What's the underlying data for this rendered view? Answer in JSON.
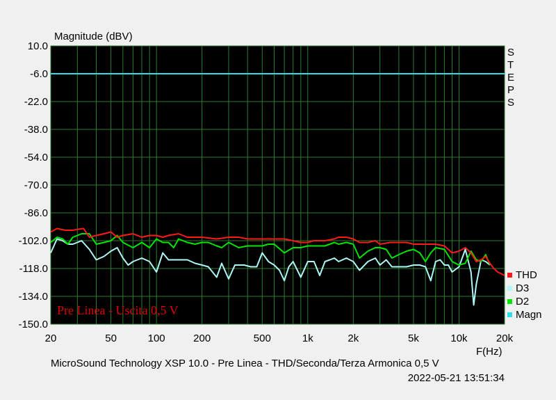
{
  "chart_data": {
    "type": "line",
    "ylabel": "Magnitude (dBV)",
    "xlabel": "F(Hz)",
    "x_scale": "log",
    "xlim": [
      20,
      20000
    ],
    "ylim": [
      -150,
      10
    ],
    "grid": true,
    "yticks": [
      10,
      -6,
      -22,
      -38,
      -54,
      -70,
      -86,
      -102,
      -118,
      -134,
      -150
    ],
    "ytick_labels": [
      "10.0",
      "-6.0",
      "-22.0",
      "-38.0",
      "-54.0",
      "-70.0",
      "-86.0",
      "-102.0",
      "-118.0",
      "-134.0",
      "-150.0"
    ],
    "xticks": [
      20,
      50,
      100,
      200,
      500,
      1000,
      2000,
      5000,
      10000,
      20000
    ],
    "xtick_labels": [
      "20",
      "50",
      "100",
      "200",
      "500",
      "1k",
      "2k",
      "5k",
      "10k",
      "20k"
    ],
    "right_side_label": "STEPS",
    "annotation": "Pre Linea - Uscita 0,5 V",
    "annotation_color": "#e00000",
    "footer_title": "MicroSound Technology XSP 10.0 - Pre Linea - THD/Seconda/Terza Armonica 0,5 V",
    "timestamp": "2022-05-21 13:51:34",
    "legend_position": "bottom-right",
    "background": "#000000",
    "grid_color": "#2e7d32",
    "series": [
      {
        "name": "THD",
        "color": "#ff1a1a",
        "points": [
          [
            20,
            -97
          ],
          [
            22,
            -95
          ],
          [
            25,
            -96
          ],
          [
            28,
            -96
          ],
          [
            30,
            -95.5
          ],
          [
            33,
            -95
          ],
          [
            36,
            -100
          ],
          [
            40,
            -99
          ],
          [
            45,
            -98
          ],
          [
            50,
            -97
          ],
          [
            55,
            -100
          ],
          [
            60,
            -99
          ],
          [
            70,
            -98
          ],
          [
            80,
            -100
          ],
          [
            90,
            -99
          ],
          [
            100,
            -99
          ],
          [
            110,
            -100
          ],
          [
            120,
            -99
          ],
          [
            140,
            -98
          ],
          [
            160,
            -100
          ],
          [
            180,
            -100
          ],
          [
            200,
            -100
          ],
          [
            250,
            -101
          ],
          [
            300,
            -100
          ],
          [
            350,
            -100
          ],
          [
            400,
            -101
          ],
          [
            500,
            -101
          ],
          [
            600,
            -101
          ],
          [
            700,
            -101
          ],
          [
            800,
            -102
          ],
          [
            900,
            -103
          ],
          [
            1000,
            -103
          ],
          [
            1100,
            -102
          ],
          [
            1300,
            -102
          ],
          [
            1500,
            -101
          ],
          [
            1600,
            -100
          ],
          [
            1800,
            -100
          ],
          [
            2000,
            -101
          ],
          [
            2200,
            -103
          ],
          [
            2500,
            -103
          ],
          [
            2800,
            -102
          ],
          [
            3000,
            -104
          ],
          [
            3500,
            -103
          ],
          [
            4000,
            -103
          ],
          [
            4500,
            -103
          ],
          [
            5000,
            -104
          ],
          [
            6000,
            -104
          ],
          [
            7000,
            -104
          ],
          [
            8000,
            -105
          ],
          [
            9000,
            -109
          ],
          [
            10000,
            -108
          ],
          [
            11000,
            -106
          ],
          [
            12000,
            -109
          ],
          [
            13000,
            -114
          ],
          [
            14000,
            -113
          ],
          [
            15000,
            -111
          ],
          [
            16000,
            -115
          ],
          [
            17000,
            -118
          ],
          [
            18000,
            -120
          ],
          [
            19000,
            -121
          ],
          [
            20000,
            -122
          ]
        ]
      },
      {
        "name": "D3",
        "color": "#aef7f7",
        "points": [
          [
            20,
            -109
          ],
          [
            22,
            -101
          ],
          [
            24,
            -102
          ],
          [
            26,
            -104
          ],
          [
            28,
            -104
          ],
          [
            30,
            -103
          ],
          [
            32,
            -102
          ],
          [
            36,
            -107
          ],
          [
            40,
            -113
          ],
          [
            45,
            -111
          ],
          [
            50,
            -108
          ],
          [
            55,
            -106
          ],
          [
            60,
            -112
          ],
          [
            65,
            -116
          ],
          [
            70,
            -114
          ],
          [
            80,
            -112
          ],
          [
            90,
            -114
          ],
          [
            100,
            -120
          ],
          [
            110,
            -109
          ],
          [
            120,
            -113
          ],
          [
            140,
            -113
          ],
          [
            160,
            -113
          ],
          [
            180,
            -115
          ],
          [
            200,
            -116
          ],
          [
            220,
            -117
          ],
          [
            250,
            -123
          ],
          [
            270,
            -115
          ],
          [
            300,
            -124
          ],
          [
            330,
            -116
          ],
          [
            380,
            -116
          ],
          [
            420,
            -117
          ],
          [
            460,
            -117
          ],
          [
            500,
            -109
          ],
          [
            550,
            -114
          ],
          [
            600,
            -116
          ],
          [
            650,
            -119
          ],
          [
            700,
            -125
          ],
          [
            750,
            -117
          ],
          [
            800,
            -114
          ],
          [
            900,
            -123
          ],
          [
            1000,
            -114
          ],
          [
            1100,
            -114
          ],
          [
            1200,
            -122
          ],
          [
            1300,
            -114
          ],
          [
            1400,
            -113
          ],
          [
            1500,
            -112
          ],
          [
            1600,
            -114
          ],
          [
            1800,
            -112
          ],
          [
            2000,
            -114
          ],
          [
            2200,
            -119
          ],
          [
            2500,
            -114
          ],
          [
            2800,
            -112
          ],
          [
            3000,
            -116
          ],
          [
            3300,
            -113
          ],
          [
            3600,
            -117
          ],
          [
            4000,
            -117
          ],
          [
            4500,
            -117
          ],
          [
            5000,
            -116
          ],
          [
            5500,
            -116
          ],
          [
            6000,
            -117
          ],
          [
            6500,
            -125
          ],
          [
            7000,
            -114
          ],
          [
            7500,
            -113
          ],
          [
            8000,
            -116
          ],
          [
            8500,
            -116
          ],
          [
            9000,
            -120
          ],
          [
            10000,
            -117
          ],
          [
            11000,
            -107
          ],
          [
            12000,
            -120
          ],
          [
            12500,
            -139
          ],
          [
            13000,
            -127
          ],
          [
            14000,
            -113
          ],
          [
            15000,
            -114
          ],
          [
            16000,
            -116
          ]
        ]
      },
      {
        "name": "D2",
        "color": "#00e600",
        "points": [
          [
            20,
            -103
          ],
          [
            22,
            -100
          ],
          [
            24,
            -101
          ],
          [
            26,
            -104
          ],
          [
            28,
            -100
          ],
          [
            30,
            -99
          ],
          [
            32,
            -98
          ],
          [
            36,
            -98
          ],
          [
            40,
            -104
          ],
          [
            45,
            -103
          ],
          [
            50,
            -102
          ],
          [
            55,
            -99
          ],
          [
            60,
            -103
          ],
          [
            70,
            -106
          ],
          [
            80,
            -103
          ],
          [
            90,
            -106
          ],
          [
            100,
            -101
          ],
          [
            110,
            -103
          ],
          [
            120,
            -103
          ],
          [
            130,
            -106
          ],
          [
            140,
            -101
          ],
          [
            160,
            -103
          ],
          [
            180,
            -104
          ],
          [
            200,
            -103
          ],
          [
            220,
            -103
          ],
          [
            250,
            -105
          ],
          [
            270,
            -106
          ],
          [
            300,
            -103
          ],
          [
            350,
            -106
          ],
          [
            400,
            -105
          ],
          [
            450,
            -105
          ],
          [
            500,
            -105
          ],
          [
            550,
            -104
          ],
          [
            600,
            -104
          ],
          [
            700,
            -109
          ],
          [
            800,
            -106
          ],
          [
            900,
            -106
          ],
          [
            1000,
            -105
          ],
          [
            1100,
            -105
          ],
          [
            1200,
            -105
          ],
          [
            1300,
            -105
          ],
          [
            1500,
            -103
          ],
          [
            1600,
            -104
          ],
          [
            1800,
            -103
          ],
          [
            2000,
            -104
          ],
          [
            2200,
            -112
          ],
          [
            2500,
            -108
          ],
          [
            2800,
            -106
          ],
          [
            3000,
            -106
          ],
          [
            3300,
            -107
          ],
          [
            3600,
            -112
          ],
          [
            4000,
            -110
          ],
          [
            4500,
            -108
          ],
          [
            5000,
            -107
          ],
          [
            5500,
            -109
          ],
          [
            6000,
            -114
          ],
          [
            6500,
            -109
          ],
          [
            7000,
            -106
          ],
          [
            8000,
            -107
          ],
          [
            9000,
            -114
          ],
          [
            10000,
            -116
          ],
          [
            11000,
            -115
          ],
          [
            12000,
            -108
          ],
          [
            13000,
            -113
          ],
          [
            14000,
            -114
          ],
          [
            15000,
            -110
          ],
          [
            16000,
            -116
          ]
        ]
      },
      {
        "name": "Magn",
        "color": "#29e0e8",
        "points": [
          [
            20,
            -6
          ],
          [
            20000,
            -6
          ]
        ]
      }
    ]
  }
}
